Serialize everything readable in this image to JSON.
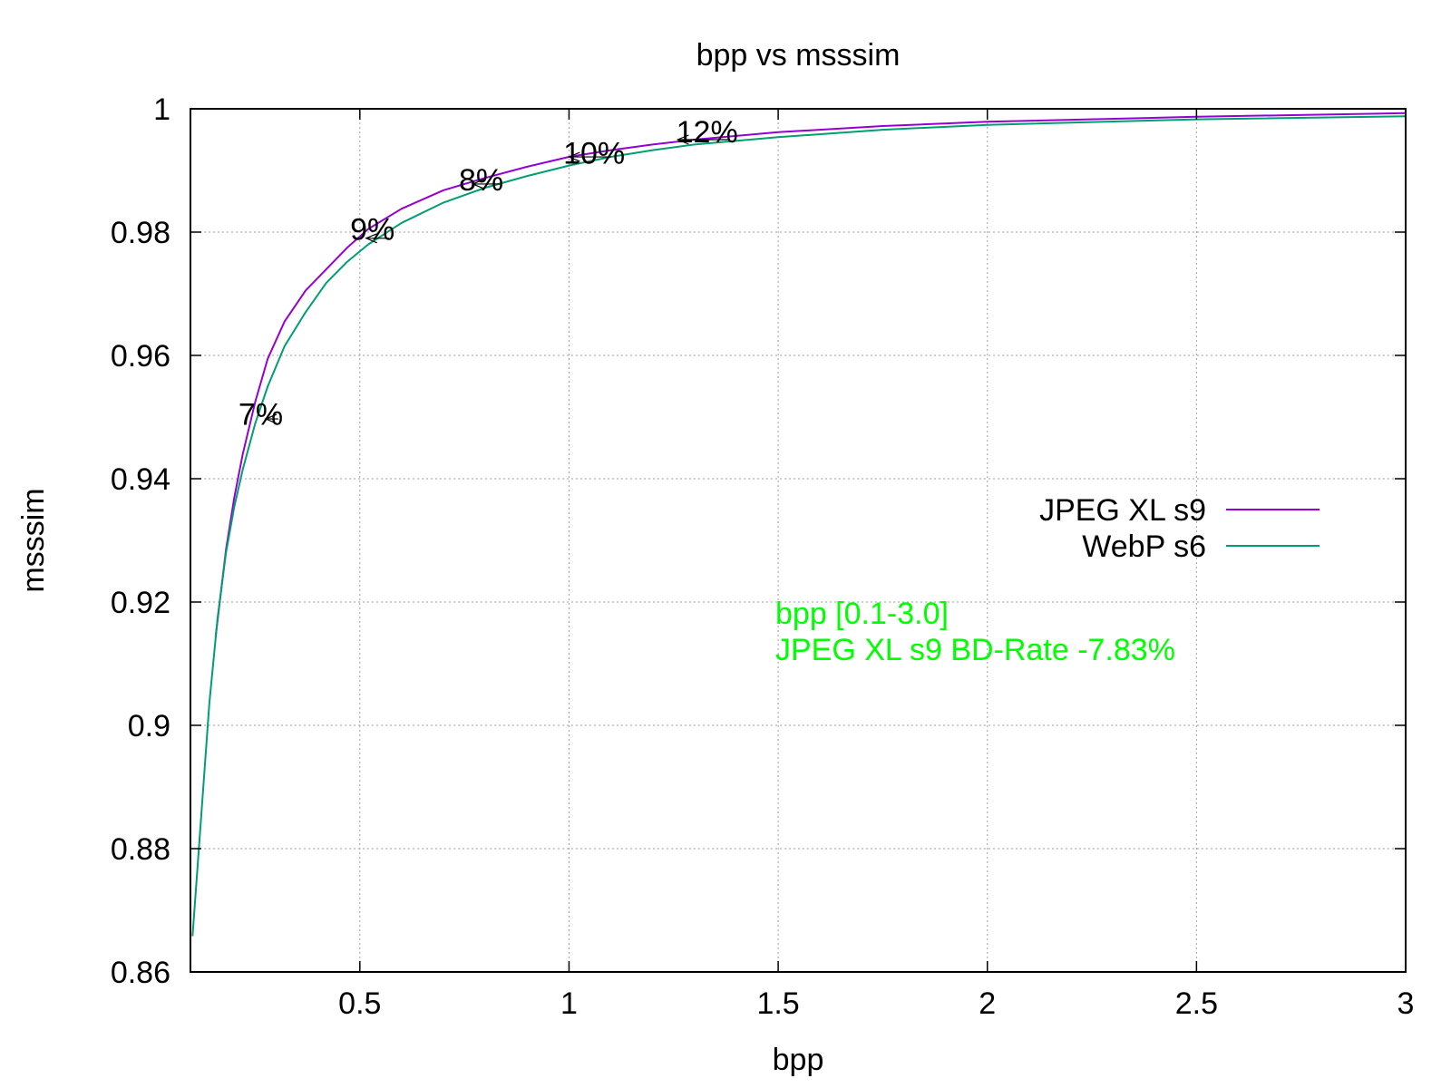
{
  "chart_data": {
    "type": "line",
    "title": "bpp vs msssim",
    "xlabel": "bpp",
    "ylabel": "msssim",
    "xlim": [
      0.095,
      3.0
    ],
    "ylim": [
      0.86,
      1.0
    ],
    "xticks": [
      0.5,
      1,
      1.5,
      2,
      2.5,
      3
    ],
    "xtick_labels": [
      "0.5",
      "1",
      "1.5",
      "2",
      "2.5",
      "3"
    ],
    "yticks": [
      0.86,
      0.88,
      0.9,
      0.92,
      0.94,
      0.96,
      0.98,
      1.0
    ],
    "ytick_labels": [
      "0.86",
      "0.88",
      "0.9",
      "0.92",
      "0.94",
      "0.96",
      "0.98",
      "1"
    ],
    "grid": true,
    "legend_position": "right",
    "series": [
      {
        "name": "JPEG XL s9",
        "color": "#9400d3",
        "x": [
          0.155,
          0.18,
          0.2,
          0.22,
          0.25,
          0.28,
          0.32,
          0.37,
          0.42,
          0.47,
          0.52,
          0.6,
          0.7,
          0.8,
          0.9,
          1.0,
          1.1,
          1.2,
          1.3,
          1.5,
          1.75,
          2.0,
          2.5,
          3.0
        ],
        "y": [
          0.9143,
          0.9285,
          0.937,
          0.944,
          0.9525,
          0.9595,
          0.9655,
          0.9705,
          0.974,
          0.9775,
          0.9805,
          0.9838,
          0.9868,
          0.9888,
          0.9906,
          0.9922,
          0.9933,
          0.9942,
          0.995,
          0.9962,
          0.9972,
          0.9979,
          0.9987,
          0.9993
        ]
      },
      {
        "name": "WebP s6",
        "color": "#009e73",
        "x": [
          0.1,
          0.12,
          0.14,
          0.16,
          0.18,
          0.2,
          0.22,
          0.25,
          0.28,
          0.32,
          0.37,
          0.42,
          0.47,
          0.52,
          0.6,
          0.7,
          0.8,
          0.9,
          1.0,
          1.1,
          1.2,
          1.3,
          1.5,
          1.75,
          2.0,
          2.5,
          3.0
        ],
        "y": [
          0.8658,
          0.8845,
          0.9035,
          0.9175,
          0.928,
          0.9355,
          0.9415,
          0.949,
          0.955,
          0.9615,
          0.967,
          0.9718,
          0.9752,
          0.978,
          0.9815,
          0.9848,
          0.9872,
          0.9891,
          0.9908,
          0.9922,
          0.9933,
          0.9942,
          0.9954,
          0.9966,
          0.9974,
          0.9983,
          0.9988
        ]
      }
    ],
    "annotations": [
      {
        "text": "7%",
        "x": 0.263,
        "y": 0.9505,
        "arrow_from": [
          0.305,
          0.9497
        ],
        "arrow_to": [
          0.275,
          0.9497
        ]
      },
      {
        "text": "9%",
        "x": 0.53,
        "y": 0.9805,
        "arrow_from": [
          0.57,
          0.979
        ],
        "arrow_to": [
          0.515,
          0.979
        ]
      },
      {
        "text": "8%",
        "x": 0.79,
        "y": 0.9885,
        "arrow_from": [
          0.835,
          0.9878
        ],
        "arrow_to": [
          0.77,
          0.9878
        ]
      },
      {
        "text": "10%",
        "x": 1.06,
        "y": 0.9929,
        "arrow_from": [
          1.1,
          0.9922
        ],
        "arrow_to": [
          1.0,
          0.9922
        ]
      },
      {
        "text": "12%",
        "x": 1.33,
        "y": 0.9963,
        "arrow_from": [
          1.38,
          0.995
        ],
        "arrow_to": [
          1.26,
          0.995
        ]
      }
    ],
    "info_lines": [
      "bpp [0.1-3.0]",
      "JPEG XL s9 BD-Rate -7.83%"
    ],
    "info_color": "#00ff00"
  }
}
